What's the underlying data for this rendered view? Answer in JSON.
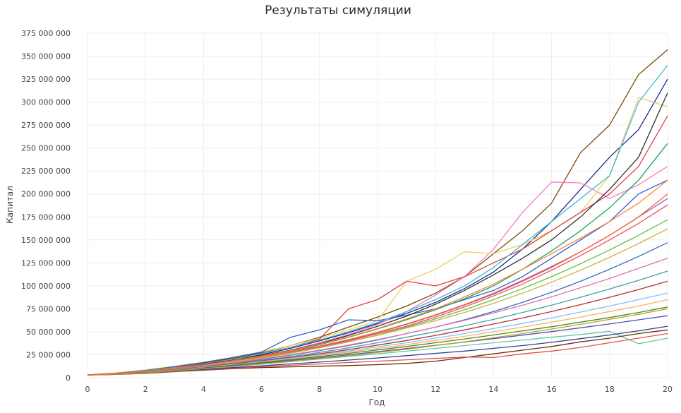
{
  "chart_data": {
    "type": "line",
    "title": "Результаты симуляции",
    "xlabel": "Год",
    "ylabel": "Капитал",
    "xlim": [
      0,
      20
    ],
    "ylim": [
      0,
      375000000
    ],
    "x_ticks": [
      "0",
      "2",
      "4",
      "6",
      "8",
      "10",
      "12",
      "14",
      "16",
      "18",
      "20"
    ],
    "y_ticks": [
      "0",
      "25 000 000",
      "50 000 000",
      "75 000 000",
      "100 000 000",
      "125 000 000",
      "150 000 000",
      "175 000 000",
      "200 000 000",
      "225 000 000",
      "250 000 000",
      "275 000 000",
      "300 000 000",
      "325 000 000",
      "350 000 000",
      "375 000 000"
    ],
    "x": [
      0,
      1,
      2,
      3,
      4,
      5,
      6,
      7,
      8,
      9,
      10,
      11,
      12,
      13,
      14,
      15,
      16,
      17,
      18,
      19,
      20
    ],
    "grid": true,
    "series": [
      {
        "color": "#7a4a00",
        "values": [
          3000000,
          5000000,
          8000000,
          12000000,
          16000000,
          21000000,
          27000000,
          35000000,
          44000000,
          55000000,
          66000000,
          78000000,
          92000000,
          110000000,
          135000000,
          160000000,
          190000000,
          245000000,
          275000000,
          330000000,
          357000000
        ]
      },
      {
        "color": "#1a2a8c",
        "values": [
          3000000,
          4500000,
          7000000,
          11000000,
          15000000,
          19000000,
          25000000,
          32000000,
          40000000,
          49000000,
          59000000,
          70000000,
          82000000,
          97000000,
          115000000,
          140000000,
          170000000,
          205000000,
          240000000,
          270000000,
          325000000
        ]
      },
      {
        "color": "#ff77cc",
        "values": [
          3000000,
          4800000,
          7500000,
          11000000,
          15000000,
          19000000,
          24000000,
          30000000,
          38000000,
          47000000,
          58000000,
          72000000,
          90000000,
          110000000,
          140000000,
          180000000,
          213000000,
          212000000,
          195000000,
          210000000,
          230000000
        ]
      },
      {
        "color": "#f0d060",
        "values": [
          3000000,
          5200000,
          8500000,
          12500000,
          17000000,
          22000000,
          28000000,
          35000000,
          43000000,
          52000000,
          62000000,
          105000000,
          118000000,
          137000000,
          135000000,
          145000000,
          160000000,
          180000000,
          220000000,
          305000000,
          295000000
        ]
      },
      {
        "color": "#e04040",
        "values": [
          3000000,
          4600000,
          7200000,
          11000000,
          15000000,
          20000000,
          26000000,
          33000000,
          42000000,
          75000000,
          85000000,
          105000000,
          100000000,
          110000000,
          125000000,
          140000000,
          160000000,
          180000000,
          200000000,
          230000000,
          285000000
        ]
      },
      {
        "color": "#2a60d0",
        "values": [
          3000000,
          5000000,
          8000000,
          12000000,
          16500000,
          22000000,
          28000000,
          44000000,
          52000000,
          63000000,
          62000000,
          68000000,
          75000000,
          85000000,
          95000000,
          110000000,
          130000000,
          150000000,
          170000000,
          200000000,
          215000000
        ]
      },
      {
        "color": "#40b8d0",
        "values": [
          3000000,
          4800000,
          7500000,
          11000000,
          15000000,
          20000000,
          26000000,
          33000000,
          41000000,
          50000000,
          60000000,
          72000000,
          85000000,
          100000000,
          120000000,
          145000000,
          170000000,
          195000000,
          220000000,
          300000000,
          340000000
        ]
      },
      {
        "color": "#20a060",
        "values": [
          3000000,
          4400000,
          6800000,
          10000000,
          14000000,
          18000000,
          23000000,
          29000000,
          36000000,
          44000000,
          53000000,
          63000000,
          74000000,
          86000000,
          100000000,
          118000000,
          138000000,
          160000000,
          185000000,
          215000000,
          255000000
        ]
      },
      {
        "color": "#303030",
        "values": [
          3000000,
          4500000,
          7000000,
          10500000,
          14500000,
          19000000,
          24000000,
          30000000,
          37000000,
          46000000,
          56000000,
          67000000,
          80000000,
          95000000,
          112000000,
          130000000,
          150000000,
          175000000,
          205000000,
          240000000,
          310000000
        ]
      },
      {
        "color": "#ff8830",
        "values": [
          3000000,
          4600000,
          7000000,
          10500000,
          14000000,
          18500000,
          23500000,
          29500000,
          36500000,
          44500000,
          53500000,
          64000000,
          75000000,
          88000000,
          102000000,
          118000000,
          135000000,
          152000000,
          170000000,
          190000000,
          215000000
        ]
      },
      {
        "color": "#9060d0",
        "values": [
          3000000,
          4400000,
          6600000,
          9800000,
          13500000,
          17500000,
          22000000,
          27500000,
          34000000,
          41000000,
          49000000,
          58000000,
          68000000,
          79000000,
          91000000,
          105000000,
          120000000,
          137000000,
          155000000,
          175000000,
          195000000
        ]
      },
      {
        "color": "#f05050",
        "values": [
          3000000,
          4500000,
          6800000,
          10000000,
          13500000,
          17500000,
          22000000,
          27000000,
          33000000,
          40000000,
          48000000,
          56000000,
          66000000,
          77000000,
          89000000,
          102000000,
          117000000,
          133000000,
          150000000,
          168000000,
          188000000
        ]
      },
      {
        "color": "#60c040",
        "values": [
          3000000,
          4300000,
          6500000,
          9500000,
          13000000,
          17000000,
          21500000,
          26500000,
          32500000,
          39000000,
          46500000,
          55000000,
          64000000,
          74000000,
          85000000,
          97000000,
          110000000,
          124000000,
          139000000,
          155000000,
          172000000
        ]
      },
      {
        "color": "#d0b040",
        "values": [
          3000000,
          4400000,
          6700000,
          9800000,
          13300000,
          17300000,
          21800000,
          26800000,
          32500000,
          39000000,
          46000000,
          54000000,
          62000000,
          71000000,
          81000000,
          92000000,
          104000000,
          117000000,
          131000000,
          146000000,
          162000000
        ]
      },
      {
        "color": "#3070c0",
        "values": [
          3000000,
          4200000,
          6300000,
          9200000,
          12500000,
          16000000,
          20000000,
          24500000,
          29500000,
          35000000,
          41000000,
          48000000,
          55000000,
          63000000,
          72000000,
          82000000,
          93000000,
          105000000,
          118000000,
          132000000,
          147000000
        ]
      },
      {
        "color": "#e070b0",
        "values": [
          3000000,
          4300000,
          6400000,
          9300000,
          12600000,
          16300000,
          20500000,
          25000000,
          30000000,
          35500000,
          41500000,
          48000000,
          55000000,
          62500000,
          70500000,
          79000000,
          88000000,
          98000000,
          108000000,
          119000000,
          130000000
        ]
      },
      {
        "color": "#40a0a0",
        "values": [
          3000000,
          4200000,
          6200000,
          9000000,
          12000000,
          15500000,
          19000000,
          23000000,
          27500000,
          32500000,
          38000000,
          44000000,
          50000000,
          56500000,
          63500000,
          71000000,
          79000000,
          87500000,
          96500000,
          106000000,
          116000000
        ]
      },
      {
        "color": "#b03030",
        "values": [
          3000000,
          4100000,
          6000000,
          8600000,
          11500000,
          14800000,
          18200000,
          22000000,
          26000000,
          30500000,
          35500000,
          40500000,
          46000000,
          52000000,
          58500000,
          65000000,
          72000000,
          79500000,
          87500000,
          96000000,
          105000000
        ]
      },
      {
        "color": "#80c0ff",
        "values": [
          3000000,
          4100000,
          5900000,
          8400000,
          11200000,
          14300000,
          17600000,
          21200000,
          25000000,
          29000000,
          33500000,
          38000000,
          43000000,
          48000000,
          53500000,
          59000000,
          65000000,
          71500000,
          78000000,
          85000000,
          92000000
        ]
      },
      {
        "color": "#ffb060",
        "values": [
          3000000,
          4000000,
          5800000,
          8200000,
          10900000,
          13900000,
          17000000,
          20400000,
          24000000,
          27800000,
          31800000,
          36000000,
          40500000,
          45000000,
          50000000,
          55000000,
          60500000,
          66000000,
          72000000,
          78000000,
          85000000
        ]
      },
      {
        "color": "#4a8a20",
        "values": [
          3000000,
          4000000,
          5700000,
          8000000,
          10600000,
          13500000,
          16500000,
          19700000,
          23000000,
          26500000,
          30200000,
          34000000,
          38000000,
          42200000,
          46500000,
          51000000,
          55500000,
          60500000,
          65500000,
          71000000,
          77000000
        ]
      },
      {
        "color": "#5050c0",
        "values": [
          3000000,
          3900000,
          5500000,
          7700000,
          10200000,
          12900000,
          15700000,
          18700000,
          21800000,
          25000000,
          28300000,
          31700000,
          35200000,
          38800000,
          42500000,
          46300000,
          50200000,
          54300000,
          58500000,
          63000000,
          67500000
        ]
      },
      {
        "color": "#60c8a0",
        "values": [
          3000000,
          3800000,
          5300000,
          7400000,
          9700000,
          12200000,
          14800000,
          17500000,
          20300000,
          23100000,
          26000000,
          28900000,
          31900000,
          35000000,
          38000000,
          41000000,
          44000000,
          47000000,
          50500000,
          37000000,
          43000000
        ]
      },
      {
        "color": "#6a3000",
        "values": [
          3000000,
          3500000,
          4800000,
          6500000,
          8200000,
          9800000,
          11000000,
          11800000,
          12500000,
          13200000,
          14200000,
          15500000,
          18000000,
          22000000,
          26000000,
          30000000,
          34000000,
          39000000,
          43000000,
          48000000,
          52000000
        ]
      },
      {
        "color": "#e05050",
        "values": [
          3000000,
          3600000,
          5000000,
          6800000,
          8600000,
          10300000,
          12000000,
          13500000,
          15000000,
          16500000,
          18000000,
          19500000,
          21000000,
          22500000,
          22000000,
          26000000,
          29000000,
          33000000,
          38000000,
          43000000,
          48000000
        ]
      },
      {
        "color": "#304090",
        "values": [
          3000000,
          3700000,
          5200000,
          7100000,
          9000000,
          11000000,
          13000000,
          15000000,
          17000000,
          19200000,
          21500000,
          24000000,
          26500000,
          29000000,
          32000000,
          35000000,
          38500000,
          42500000,
          46500000,
          51000000,
          56000000
        ]
      },
      {
        "color": "#c0a020",
        "values": [
          3000000,
          3800000,
          5400000,
          7500000,
          9800000,
          12300000,
          15000000,
          17800000,
          20800000,
          24000000,
          27500000,
          31000000,
          35000000,
          39000000,
          43500000,
          48000000,
          53000000,
          58000000,
          63500000,
          69000000,
          75000000
        ]
      },
      {
        "color": "#ff6030",
        "values": [
          3000000,
          4500000,
          6900000,
          10200000,
          14000000,
          18200000,
          23000000,
          28500000,
          34500000,
          41500000,
          49500000,
          58500000,
          68500000,
          79500000,
          92000000,
          106000000,
          121000000,
          137000000,
          155000000,
          175000000,
          200000000
        ]
      }
    ]
  }
}
